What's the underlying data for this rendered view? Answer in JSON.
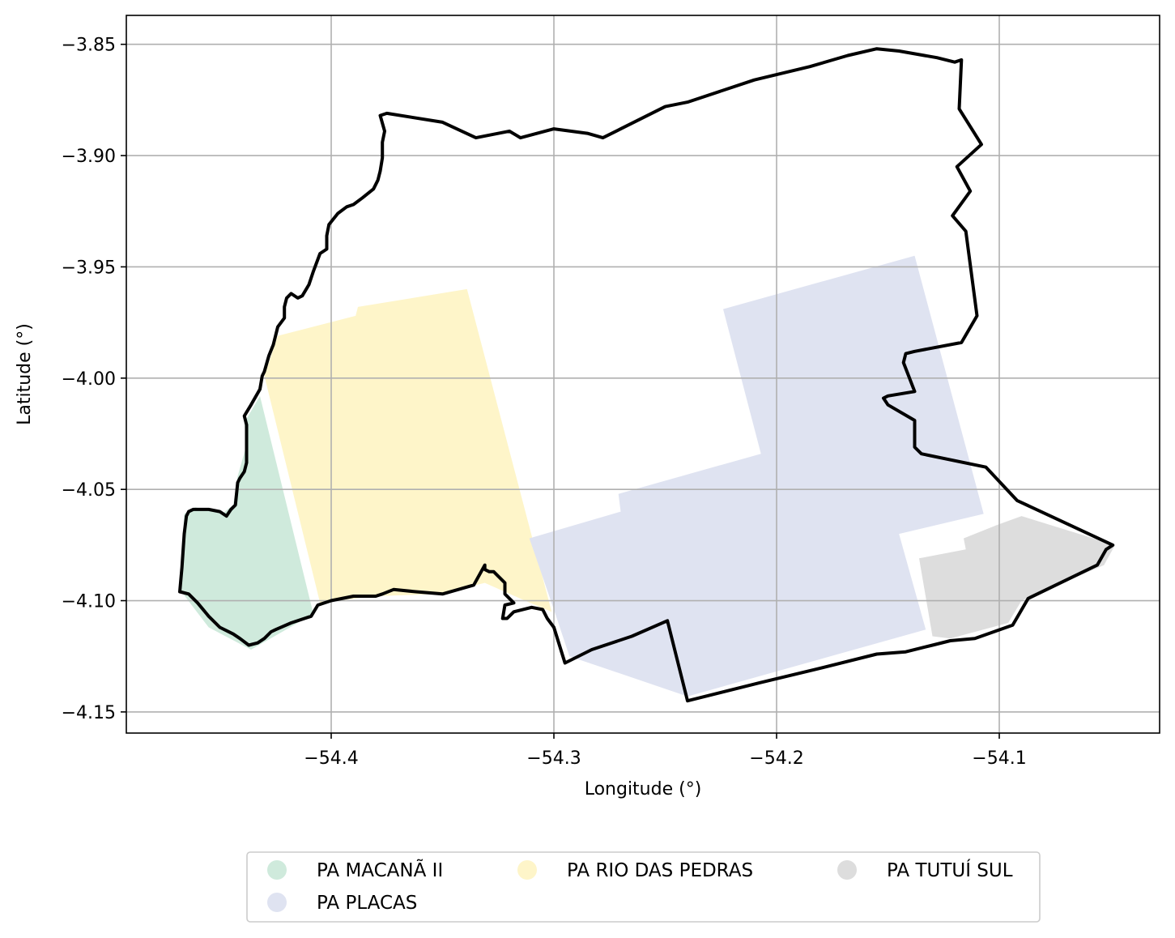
{
  "chart_data": {
    "type": "map",
    "xlabel": "Longitude (°)",
    "ylabel": "Latitude (°)",
    "xlim": [
      -54.492,
      -54.028
    ],
    "ylim": [
      -4.1595,
      -3.837
    ],
    "xticks": [
      {
        "value": -54.4,
        "label": "−54.4"
      },
      {
        "value": -54.3,
        "label": "−54.3"
      },
      {
        "value": -54.2,
        "label": "−54.2"
      },
      {
        "value": -54.1,
        "label": "−54.1"
      }
    ],
    "yticks": [
      {
        "value": -3.85,
        "label": "−3.85"
      },
      {
        "value": -3.9,
        "label": "−3.90"
      },
      {
        "value": -3.95,
        "label": "−3.95"
      },
      {
        "value": -4.0,
        "label": "−4.00"
      },
      {
        "value": -4.05,
        "label": "−4.05"
      },
      {
        "value": -4.1,
        "label": "−4.10"
      },
      {
        "value": -4.15,
        "label": "−4.15"
      }
    ],
    "grid": true,
    "legend_position": "bottom-center",
    "settlements": [
      {
        "name": "PA MACANÃ II",
        "color": "#cfeadc",
        "polygon": [
          [
            -54.432,
            -4.008
          ],
          [
            -54.408,
            -4.106
          ],
          [
            -54.436,
            -4.122
          ],
          [
            -54.455,
            -4.112
          ],
          [
            -54.468,
            -4.095
          ],
          [
            -54.466,
            -4.061
          ],
          [
            -54.461,
            -4.058
          ],
          [
            -54.449,
            -4.061
          ],
          [
            -54.444,
            -4.057
          ],
          [
            -54.442,
            -4.044
          ],
          [
            -54.438,
            -4.03
          ],
          [
            -54.439,
            -4.02
          ]
        ]
      },
      {
        "name": "PA RIO DAS PEDRAS",
        "color": "#fef5c9",
        "polygon": [
          [
            -54.424,
            -3.981
          ],
          [
            -54.389,
            -3.972
          ],
          [
            -54.388,
            -3.968
          ],
          [
            -54.339,
            -3.96
          ],
          [
            -54.301,
            -4.105
          ],
          [
            -54.313,
            -4.1
          ],
          [
            -54.331,
            -4.092
          ],
          [
            -54.352,
            -4.097
          ],
          [
            -54.38,
            -4.098
          ],
          [
            -54.405,
            -4.101
          ],
          [
            -54.43,
            -3.999
          ]
        ]
      },
      {
        "name": "PA PLACAS",
        "color": "#dfe3f1",
        "polygon": [
          [
            -54.224,
            -3.969
          ],
          [
            -54.138,
            -3.945
          ],
          [
            -54.107,
            -4.061
          ],
          [
            -54.145,
            -4.07
          ],
          [
            -54.133,
            -4.113
          ],
          [
            -54.24,
            -4.143
          ],
          [
            -54.293,
            -4.125
          ],
          [
            -54.3,
            -4.104
          ],
          [
            -54.311,
            -4.072
          ],
          [
            -54.27,
            -4.06
          ],
          [
            -54.271,
            -4.052
          ],
          [
            -54.207,
            -4.034
          ]
        ]
      },
      {
        "name": "PA TUTUÍ SUL",
        "color": "#dddddd",
        "polygon": [
          [
            -54.136,
            -4.081
          ],
          [
            -54.115,
            -4.077
          ],
          [
            -54.116,
            -4.072
          ],
          [
            -54.101,
            -4.066
          ],
          [
            -54.09,
            -4.062
          ],
          [
            -54.048,
            -4.075
          ],
          [
            -54.053,
            -4.084
          ],
          [
            -54.09,
            -4.1
          ],
          [
            -54.096,
            -4.11
          ],
          [
            -54.122,
            -4.117
          ],
          [
            -54.13,
            -4.116
          ]
        ]
      }
    ],
    "boundary": {
      "color": "#000000",
      "polygon": [
        [
          -54.375,
          -3.881
        ],
        [
          -54.35,
          -3.885
        ],
        [
          -54.335,
          -3.892
        ],
        [
          -54.32,
          -3.889
        ],
        [
          -54.315,
          -3.892
        ],
        [
          -54.3,
          -3.888
        ],
        [
          -54.285,
          -3.89
        ],
        [
          -54.278,
          -3.892
        ],
        [
          -54.27,
          -3.888
        ],
        [
          -54.25,
          -3.878
        ],
        [
          -54.24,
          -3.876
        ],
        [
          -54.21,
          -3.866
        ],
        [
          -54.185,
          -3.86
        ],
        [
          -54.168,
          -3.855
        ],
        [
          -54.155,
          -3.852
        ],
        [
          -54.145,
          -3.853
        ],
        [
          -54.128,
          -3.856
        ],
        [
          -54.12,
          -3.858
        ],
        [
          -54.117,
          -3.857
        ],
        [
          -54.118,
          -3.879
        ],
        [
          -54.108,
          -3.895
        ],
        [
          -54.119,
          -3.905
        ],
        [
          -54.113,
          -3.916
        ],
        [
          -54.121,
          -3.927
        ],
        [
          -54.115,
          -3.934
        ],
        [
          -54.11,
          -3.972
        ],
        [
          -54.117,
          -3.984
        ],
        [
          -54.138,
          -3.988
        ],
        [
          -54.142,
          -3.989
        ],
        [
          -54.143,
          -3.993
        ],
        [
          -54.138,
          -4.006
        ],
        [
          -54.15,
          -4.008
        ],
        [
          -54.152,
          -4.009
        ],
        [
          -54.15,
          -4.012
        ],
        [
          -54.138,
          -4.019
        ],
        [
          -54.138,
          -4.031
        ],
        [
          -54.135,
          -4.034
        ],
        [
          -54.106,
          -4.04
        ],
        [
          -54.092,
          -4.055
        ],
        [
          -54.049,
          -4.075
        ],
        [
          -54.052,
          -4.077
        ],
        [
          -54.056,
          -4.084
        ],
        [
          -54.087,
          -4.099
        ],
        [
          -54.094,
          -4.111
        ],
        [
          -54.111,
          -4.117
        ],
        [
          -54.122,
          -4.118
        ],
        [
          -54.13,
          -4.12
        ],
        [
          -54.142,
          -4.123
        ],
        [
          -54.155,
          -4.124
        ],
        [
          -54.183,
          -4.131
        ],
        [
          -54.208,
          -4.137
        ],
        [
          -54.24,
          -4.145
        ],
        [
          -54.249,
          -4.109
        ],
        [
          -54.265,
          -4.116
        ],
        [
          -54.283,
          -4.122
        ],
        [
          -54.295,
          -4.128
        ],
        [
          -54.3,
          -4.112
        ],
        [
          -54.303,
          -4.108
        ],
        [
          -54.305,
          -4.104
        ],
        [
          -54.31,
          -4.103
        ],
        [
          -54.318,
          -4.105
        ],
        [
          -54.321,
          -4.108
        ],
        [
          -54.323,
          -4.108
        ],
        [
          -54.322,
          -4.102
        ],
        [
          -54.318,
          -4.101
        ],
        [
          -54.322,
          -4.097
        ],
        [
          -54.322,
          -4.092
        ],
        [
          -54.325,
          -4.089
        ],
        [
          -54.327,
          -4.087
        ],
        [
          -54.329,
          -4.087
        ],
        [
          -54.331,
          -4.086
        ],
        [
          -54.331,
          -4.084
        ],
        [
          -54.336,
          -4.093
        ],
        [
          -54.35,
          -4.097
        ],
        [
          -54.362,
          -4.096
        ],
        [
          -54.372,
          -4.095
        ],
        [
          -54.377,
          -4.097
        ],
        [
          -54.38,
          -4.098
        ],
        [
          -54.385,
          -4.098
        ],
        [
          -54.39,
          -4.098
        ],
        [
          -54.4,
          -4.1
        ],
        [
          -54.406,
          -4.102
        ],
        [
          -54.409,
          -4.107
        ],
        [
          -54.412,
          -4.108
        ],
        [
          -54.418,
          -4.11
        ],
        [
          -54.425,
          -4.113
        ],
        [
          -54.427,
          -4.114
        ],
        [
          -54.43,
          -4.117
        ],
        [
          -54.433,
          -4.119
        ],
        [
          -54.437,
          -4.12
        ],
        [
          -54.441,
          -4.117
        ],
        [
          -54.444,
          -4.115
        ],
        [
          -54.45,
          -4.112
        ],
        [
          -54.455,
          -4.107
        ],
        [
          -54.46,
          -4.101
        ],
        [
          -54.464,
          -4.097
        ],
        [
          -54.468,
          -4.096
        ],
        [
          -54.467,
          -4.085
        ],
        [
          -54.466,
          -4.07
        ],
        [
          -54.465,
          -4.062
        ],
        [
          -54.464,
          -4.06
        ],
        [
          -54.462,
          -4.059
        ],
        [
          -54.455,
          -4.059
        ],
        [
          -54.45,
          -4.06
        ],
        [
          -54.447,
          -4.062
        ],
        [
          -54.445,
          -4.059
        ],
        [
          -54.443,
          -4.057
        ],
        [
          -54.442,
          -4.047
        ],
        [
          -54.441,
          -4.045
        ],
        [
          -54.439,
          -4.042
        ],
        [
          -54.438,
          -4.038
        ],
        [
          -54.438,
          -4.029
        ],
        [
          -54.438,
          -4.021
        ],
        [
          -54.439,
          -4.017
        ],
        [
          -54.436,
          -4.012
        ],
        [
          -54.432,
          -4.005
        ],
        [
          -54.431,
          -3.999
        ],
        [
          -54.43,
          -3.997
        ],
        [
          -54.428,
          -3.99
        ],
        [
          -54.426,
          -3.985
        ],
        [
          -54.424,
          -3.977
        ],
        [
          -54.421,
          -3.973
        ],
        [
          -54.421,
          -3.968
        ],
        [
          -54.42,
          -3.964
        ],
        [
          -54.418,
          -3.962
        ],
        [
          -54.415,
          -3.964
        ],
        [
          -54.413,
          -3.963
        ],
        [
          -54.41,
          -3.958
        ],
        [
          -54.409,
          -3.955
        ],
        [
          -54.408,
          -3.952
        ],
        [
          -54.405,
          -3.944
        ],
        [
          -54.402,
          -3.942
        ],
        [
          -54.402,
          -3.936
        ],
        [
          -54.401,
          -3.931
        ],
        [
          -54.397,
          -3.926
        ],
        [
          -54.393,
          -3.923
        ],
        [
          -54.39,
          -3.922
        ],
        [
          -54.386,
          -3.919
        ],
        [
          -54.381,
          -3.915
        ],
        [
          -54.379,
          -3.911
        ],
        [
          -54.378,
          -3.907
        ],
        [
          -54.377,
          -3.901
        ],
        [
          -54.377,
          -3.894
        ],
        [
          -54.376,
          -3.889
        ],
        [
          -54.378,
          -3.882
        ]
      ]
    },
    "legend": [
      {
        "label": "PA MACANÃ II",
        "color": "#cfeadc"
      },
      {
        "label": "PA RIO DAS PEDRAS",
        "color": "#fef5c9"
      },
      {
        "label": "PA TUTUÍ SUL",
        "color": "#dddddd"
      },
      {
        "label": "PA PLACAS",
        "color": "#dfe3f1"
      }
    ]
  }
}
